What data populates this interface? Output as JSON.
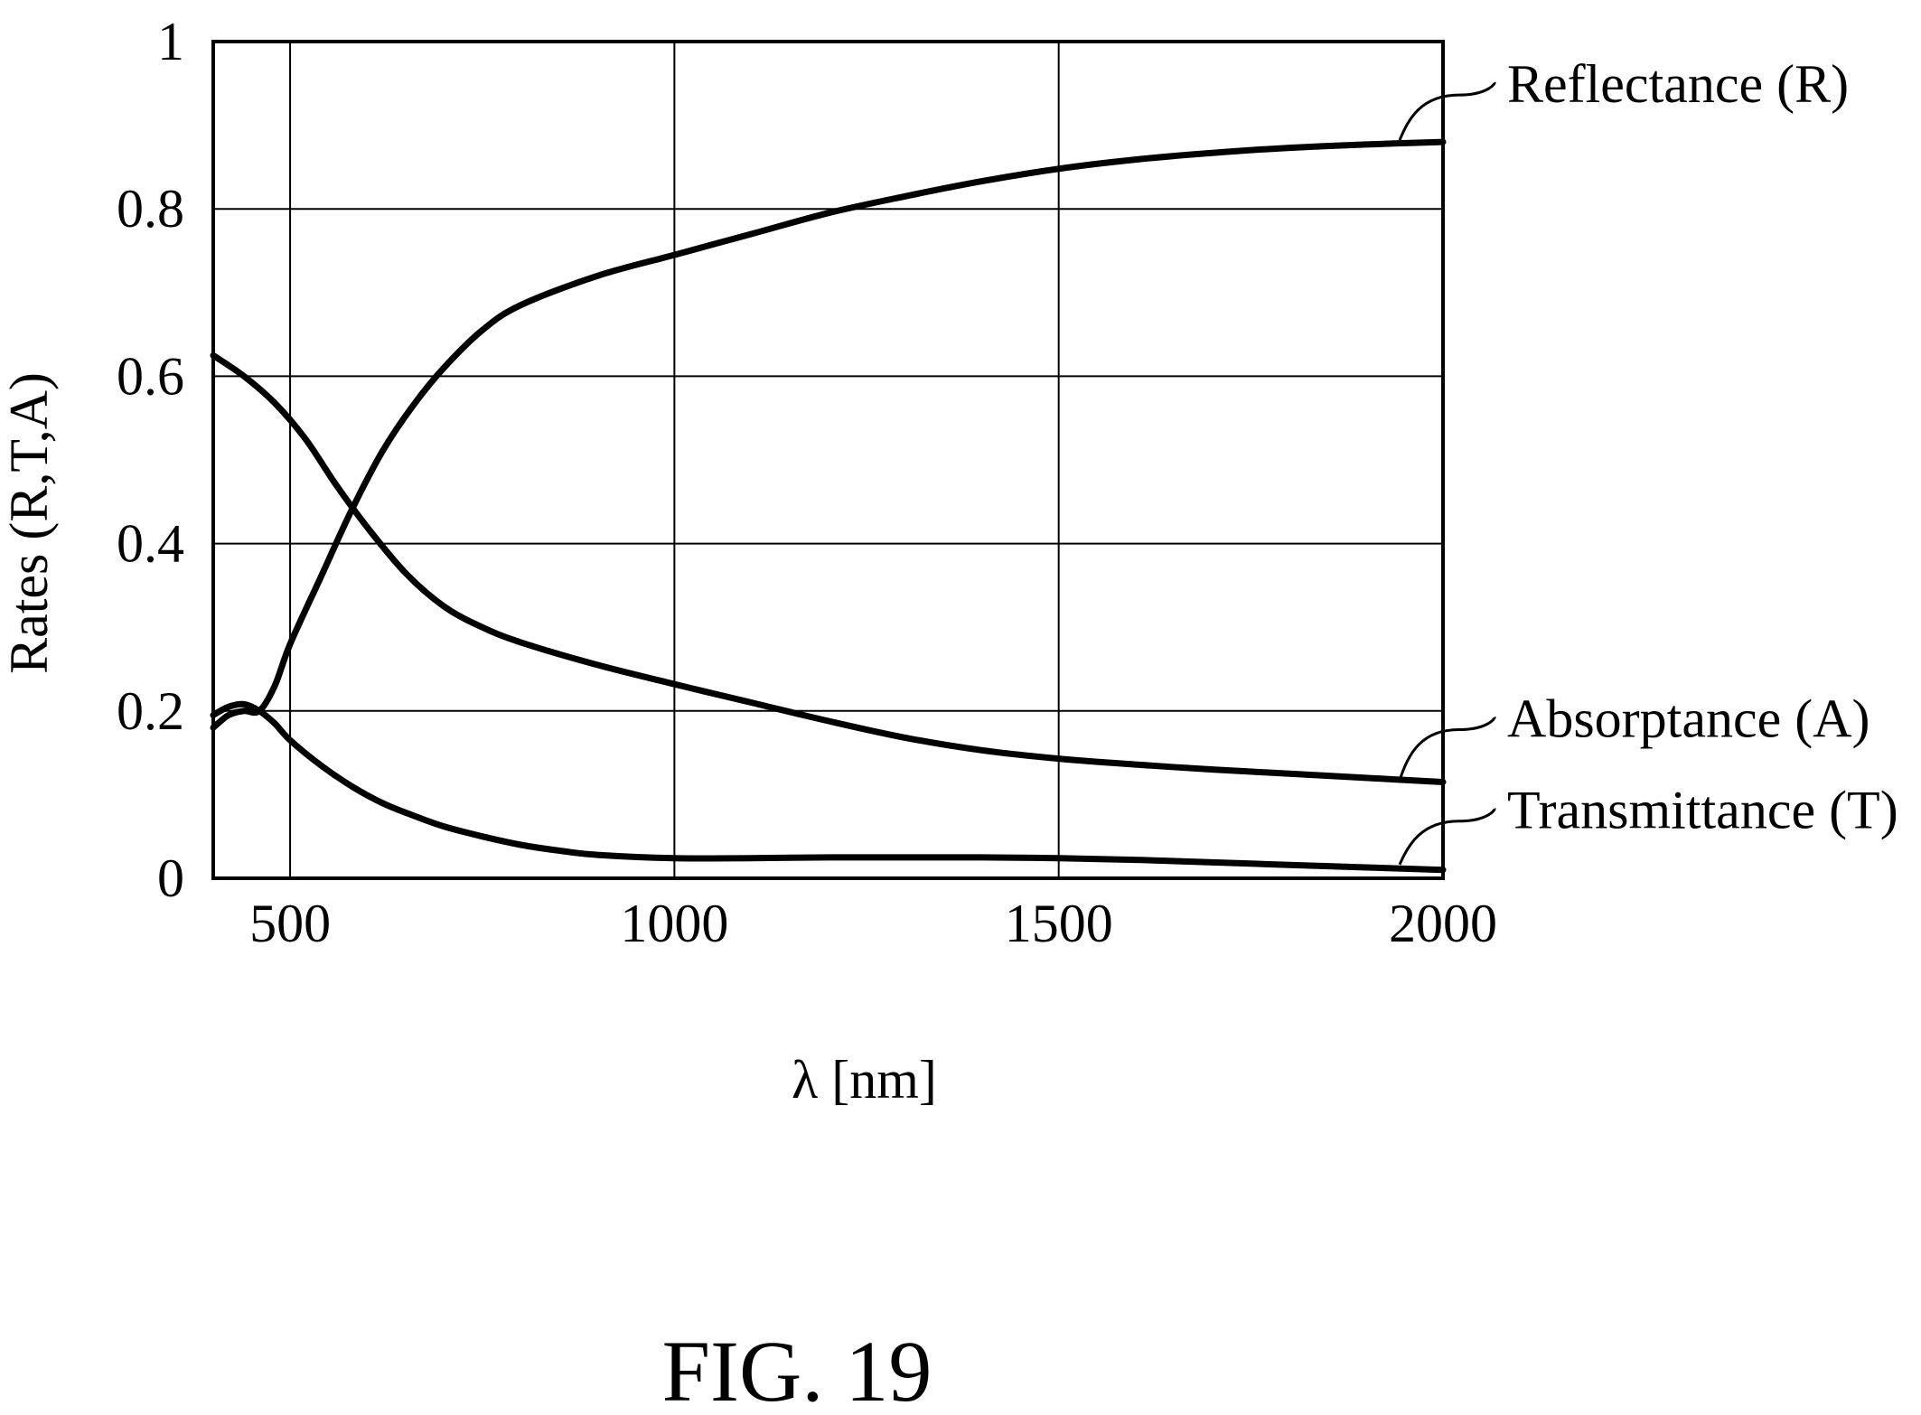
{
  "chart_data": {
    "type": "line",
    "xlabel": "λ [nm]",
    "ylabel": "Rates (R,T,A)",
    "xlim": [
      400,
      2000
    ],
    "ylim": [
      0,
      1
    ],
    "xticks": [
      500,
      1000,
      1500,
      2000
    ],
    "xtick_labels": [
      "500",
      "1000",
      "1500",
      "2000"
    ],
    "yticks": [
      0,
      0.2,
      0.4,
      0.6,
      0.8,
      1
    ],
    "ytick_labels": [
      "0",
      "0.2",
      "0.4",
      "0.6",
      "0.8",
      "1"
    ],
    "grid": true,
    "legend": "inline labels at right end of curves",
    "series": [
      {
        "name": "Reflectance (R)",
        "x": [
          400,
          420,
          440,
          460,
          480,
          500,
          540,
          580,
          620,
          660,
          700,
          750,
          800,
          900,
          1000,
          1100,
          1200,
          1300,
          1400,
          1500,
          1600,
          1700,
          1800,
          1900,
          2000
        ],
        "values": [
          0.18,
          0.195,
          0.2,
          0.2,
          0.23,
          0.28,
          0.36,
          0.44,
          0.51,
          0.565,
          0.61,
          0.655,
          0.685,
          0.72,
          0.745,
          0.77,
          0.795,
          0.815,
          0.833,
          0.848,
          0.859,
          0.867,
          0.873,
          0.877,
          0.88
        ]
      },
      {
        "name": "Absorptance (A)",
        "x": [
          400,
          440,
          480,
          520,
          560,
          600,
          650,
          700,
          750,
          800,
          900,
          1000,
          1100,
          1200,
          1300,
          1400,
          1500,
          1600,
          1700,
          1800,
          1900,
          2000
        ],
        "values": [
          0.625,
          0.6,
          0.568,
          0.525,
          0.47,
          0.42,
          0.365,
          0.325,
          0.3,
          0.282,
          0.255,
          0.232,
          0.21,
          0.188,
          0.168,
          0.153,
          0.143,
          0.136,
          0.13,
          0.125,
          0.12,
          0.115
        ]
      },
      {
        "name": "Transmittance (T)",
        "x": [
          400,
          420,
          440,
          460,
          480,
          500,
          540,
          580,
          620,
          660,
          700,
          750,
          800,
          850,
          900,
          1000,
          1100,
          1200,
          1300,
          1400,
          1500,
          1600,
          1700,
          1800,
          1900,
          2000
        ],
        "values": [
          0.195,
          0.205,
          0.208,
          0.2,
          0.185,
          0.165,
          0.135,
          0.11,
          0.09,
          0.075,
          0.062,
          0.05,
          0.04,
          0.033,
          0.028,
          0.024,
          0.024,
          0.025,
          0.025,
          0.025,
          0.024,
          0.022,
          0.019,
          0.016,
          0.013,
          0.01
        ]
      }
    ]
  },
  "caption": "FIG. 19"
}
